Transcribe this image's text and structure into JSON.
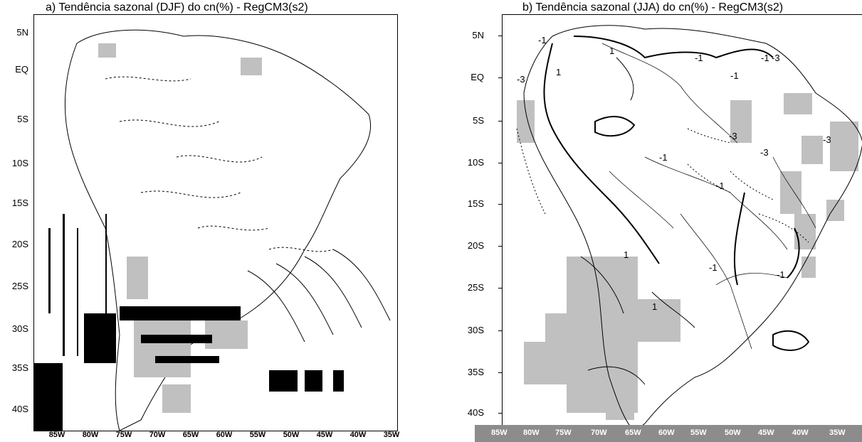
{
  "panel_a": {
    "title": "a) Tendência sazonal (DJF) do cn(%) - RegCM3(s2)",
    "y_labels": [
      "5N",
      "EQ",
      "5S",
      "10S",
      "15S",
      "20S",
      "25S",
      "30S",
      "35S",
      "40S"
    ],
    "x_labels": [
      "85W",
      "80W",
      "75W",
      "70W",
      "65W",
      "60W",
      "55W",
      "50W",
      "45W",
      "40W",
      "35W"
    ]
  },
  "panel_b": {
    "title": "b) Tendência sazonal (JJA) do cn(%) - RegCM3(s2)",
    "y_labels": [
      "5N",
      "EQ",
      "5S",
      "10S",
      "15S",
      "20S",
      "25S",
      "30S",
      "35S",
      "40S"
    ],
    "contour_labels": [
      "-1",
      "-1",
      "-3",
      "-3",
      "-3",
      "-3",
      "-1",
      "-1",
      "-1",
      "-1",
      "-1",
      "1",
      "1",
      "1",
      "-1",
      "1",
      "-3"
    ],
    "x_labels": [
      "85W",
      "80W",
      "75W",
      "70W",
      "65W",
      "60W",
      "55W",
      "50W",
      "45W",
      "40W",
      "35W"
    ]
  },
  "colors": {
    "shading": "#c0c0c0",
    "contour": "#000000",
    "band": "#8c8c8c"
  }
}
